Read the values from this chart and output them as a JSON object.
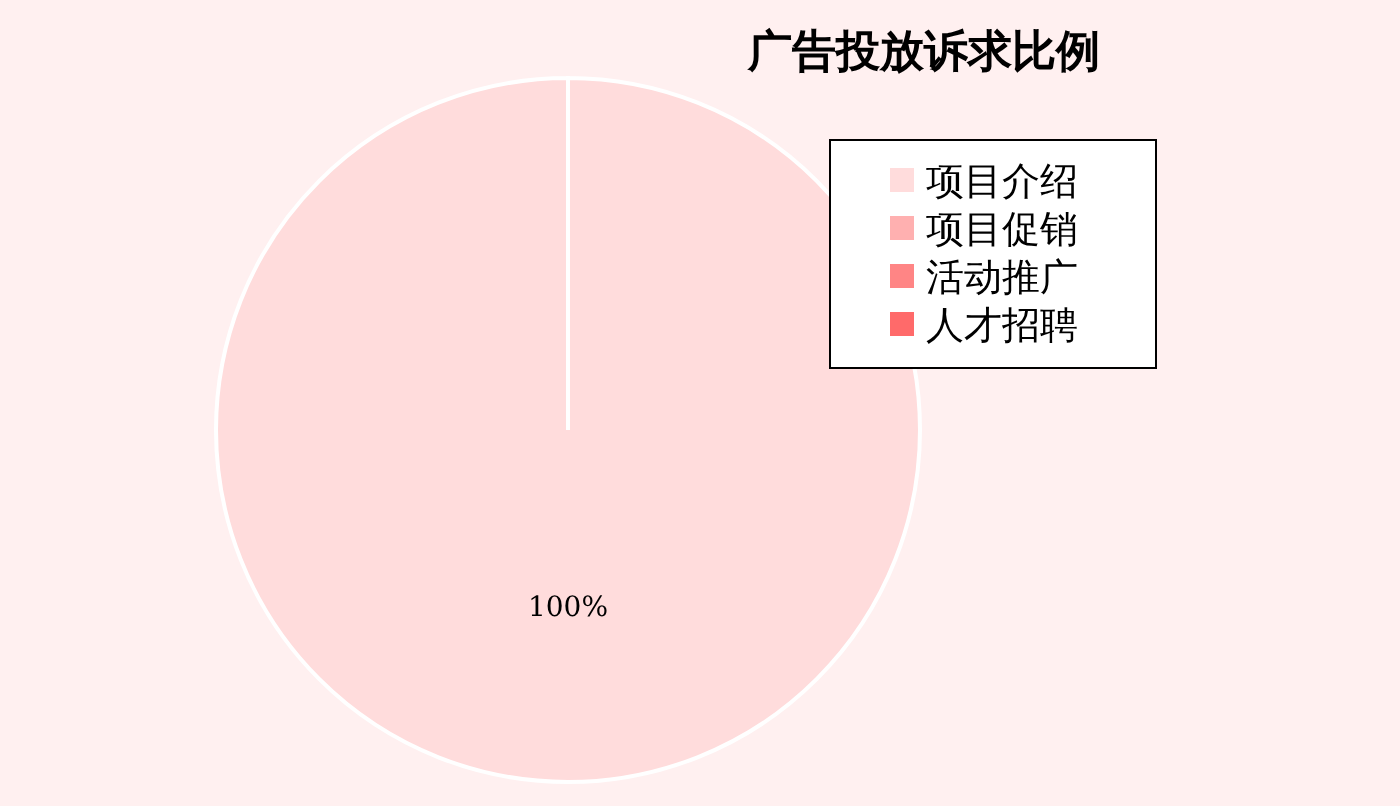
{
  "chart_data": {
    "type": "pie",
    "title": "广告投放诉求比例",
    "categories": [
      "项目介绍",
      "项目促销",
      "活动推广",
      "人才招聘"
    ],
    "values": [
      100,
      0,
      0,
      0
    ],
    "colors": [
      "#ffdcdc",
      "#ffb0b0",
      "#ff8585",
      "#ff6a6a"
    ],
    "value_labels": [
      "100%",
      null,
      null,
      null
    ],
    "legend": "top right"
  }
}
